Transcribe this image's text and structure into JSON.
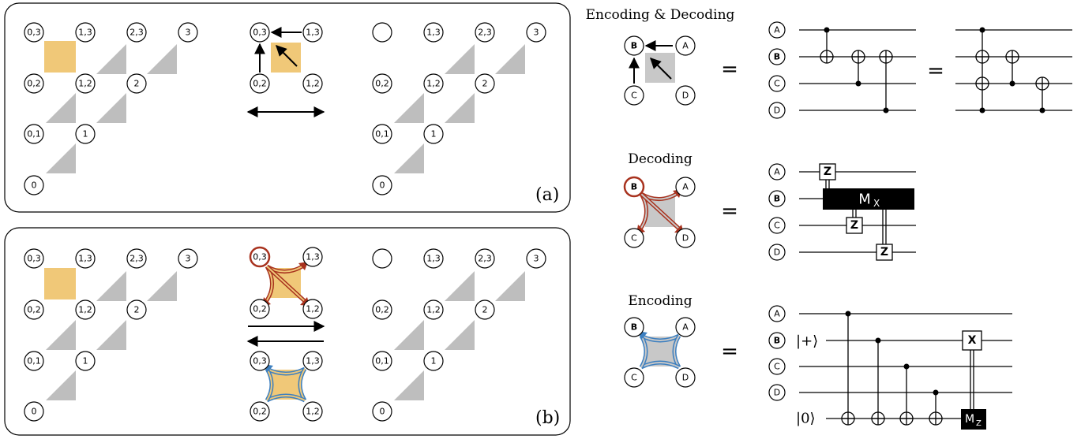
{
  "colors": {
    "plaquette_highlight": "#F0C878",
    "triangle": "#BEBEBE",
    "stabilizer_square": "#C8C8C8",
    "decode_red": "#A8321E",
    "encode_blue": "#3C7FC0",
    "measure_black": "#000000"
  },
  "panels": {
    "a": {
      "label": "(a)"
    },
    "b": {
      "label": "(b)"
    }
  },
  "grid_nodes": {
    "left": [
      "0,3",
      "1,3",
      "2,3",
      "3",
      "0,2",
      "1,2",
      "2",
      "0,1",
      "1",
      "0"
    ],
    "right": [
      "",
      "1,3",
      "2,3",
      "3",
      "0,2",
      "1,2",
      "2",
      "0,1",
      "1",
      "0"
    ]
  },
  "middle_nodes": [
    "0,3",
    "1,3",
    "0,2",
    "1,2"
  ],
  "circuits": {
    "encode_decode": {
      "title": "Encoding & Decoding",
      "qubits": [
        "A",
        "B",
        "C",
        "D"
      ],
      "equals": [
        "=",
        "="
      ]
    },
    "decode": {
      "title": "Decoding",
      "qubits": [
        "A",
        "B",
        "C",
        "D"
      ],
      "equals": "=",
      "gates": {
        "z": "Z",
        "mx_main": "M",
        "mx_sub": "X"
      }
    },
    "encode": {
      "title": "Encoding",
      "qubits": [
        "A",
        "B",
        "C",
        "D"
      ],
      "equals": "=",
      "kets": {
        "plus": "|+⟩",
        "zero": "|0⟩"
      },
      "gates": {
        "x": "X",
        "mz_main": "M",
        "mz_sub": "Z"
      }
    }
  }
}
